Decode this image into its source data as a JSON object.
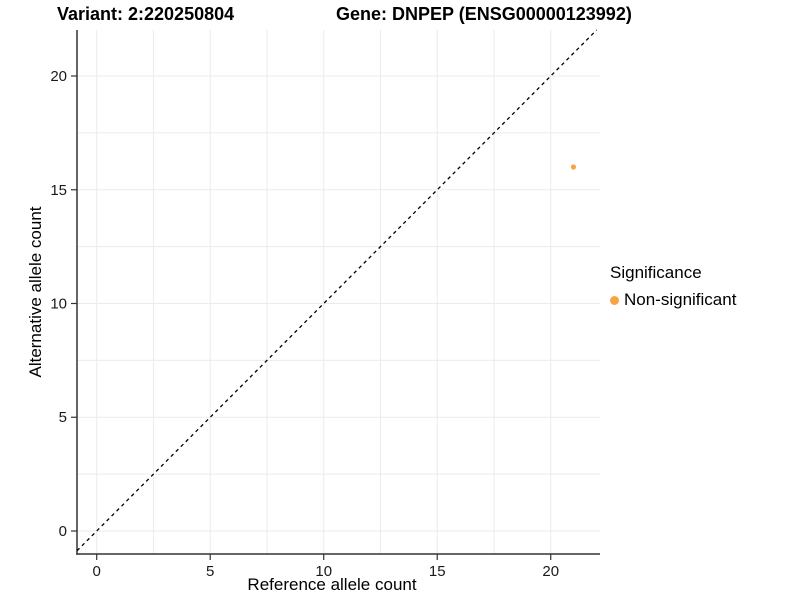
{
  "chart_data": {
    "type": "scatter",
    "titles": {
      "left": "Variant: 2:220250804",
      "right": "Gene: DNPEP (ENSG00000123992)"
    },
    "xlabel": "Reference allele count",
    "ylabel": "Alternative allele count",
    "x_ticks": [
      0,
      5,
      10,
      15,
      20
    ],
    "y_ticks": [
      0,
      5,
      10,
      15,
      20
    ],
    "xlim": [
      -0.868,
      22.17
    ],
    "ylim": [
      -1.011,
      22.022
    ],
    "minor_step": 2.5,
    "grid": {
      "color": "#EBEBEB",
      "on": true
    },
    "axis": {
      "line_color": "#333333",
      "tick_color": "#333333",
      "tick_label_color": "#1a1a1a"
    },
    "identity_line": {
      "slope": 1,
      "intercept": 0,
      "color": "#000000",
      "dash": "3.5 3.5"
    },
    "points": [
      {
        "x": 21,
        "y": 16,
        "series": "Non-significant",
        "color": "#F9A342",
        "radius": 2.6
      }
    ],
    "legend": {
      "title": "Significance",
      "position": "right",
      "entries": [
        {
          "label": "Non-significant",
          "color": "#F9A342"
        }
      ]
    }
  }
}
